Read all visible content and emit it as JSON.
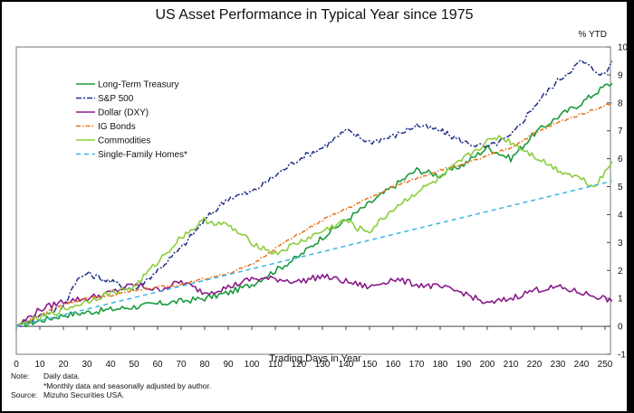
{
  "chart_data": {
    "type": "line",
    "title": "US Asset Performance in Typical Year since 1975",
    "xlabel": "Trading Days in Year",
    "ylabel": "% YTD",
    "xlim": [
      0,
      255
    ],
    "ylim": [
      -1,
      10
    ],
    "xticks": [
      0,
      10,
      20,
      30,
      40,
      50,
      60,
      70,
      80,
      90,
      100,
      110,
      120,
      130,
      140,
      150,
      160,
      170,
      180,
      190,
      200,
      210,
      220,
      230,
      240,
      250
    ],
    "yticks": [
      -1,
      0,
      1,
      2,
      3,
      4,
      5,
      6,
      7,
      8,
      9,
      10
    ],
    "y_axis_side": "right",
    "grid": false,
    "legend_position": "top-left",
    "series": [
      {
        "name": "Long-Term Treasury",
        "color": "#1a9a3c",
        "style": "solid",
        "x": [
          0,
          10,
          20,
          30,
          40,
          50,
          60,
          70,
          80,
          90,
          100,
          110,
          120,
          130,
          140,
          150,
          160,
          170,
          180,
          190,
          200,
          210,
          220,
          230,
          240,
          250,
          253
        ],
        "y": [
          0,
          0.2,
          0.4,
          0.5,
          0.6,
          0.7,
          0.8,
          0.9,
          1.0,
          1.2,
          1.5,
          2.0,
          2.5,
          3.2,
          3.8,
          4.4,
          5.0,
          5.6,
          5.4,
          5.8,
          6.4,
          6.0,
          6.9,
          7.5,
          8.0,
          8.6,
          8.7
        ]
      },
      {
        "name": "S&P 500",
        "color": "#1f2f8a",
        "style": "dashdot",
        "x": [
          0,
          10,
          20,
          25,
          30,
          40,
          50,
          60,
          70,
          80,
          90,
          100,
          110,
          120,
          130,
          140,
          150,
          160,
          170,
          180,
          190,
          200,
          210,
          220,
          230,
          240,
          245,
          250,
          253
        ],
        "y": [
          0,
          0.4,
          0.7,
          1.6,
          1.9,
          1.6,
          1.3,
          2.0,
          2.8,
          3.8,
          4.6,
          4.8,
          5.4,
          6.0,
          6.4,
          7.0,
          6.6,
          6.8,
          7.2,
          7.0,
          6.6,
          6.4,
          6.8,
          7.9,
          8.8,
          9.5,
          9.2,
          9.0,
          9.5
        ]
      },
      {
        "name": "Dollar (DXY)",
        "color": "#8a1a8a",
        "style": "solid",
        "x": [
          0,
          10,
          20,
          30,
          40,
          50,
          60,
          70,
          80,
          90,
          100,
          110,
          120,
          130,
          140,
          150,
          160,
          170,
          180,
          190,
          200,
          210,
          220,
          230,
          240,
          250,
          253
        ],
        "y": [
          0,
          0.6,
          0.9,
          1.0,
          1.2,
          1.5,
          1.3,
          1.6,
          1.2,
          1.4,
          1.7,
          1.7,
          1.6,
          1.8,
          1.6,
          1.4,
          1.7,
          1.5,
          1.4,
          1.2,
          0.8,
          1.0,
          1.3,
          1.4,
          1.2,
          1.0,
          0.9
        ]
      },
      {
        "name": "IG Bonds",
        "color": "#e8731a",
        "style": "dashed-dot",
        "x": [
          0,
          10,
          20,
          30,
          40,
          50,
          60,
          70,
          80,
          90,
          100,
          110,
          120,
          130,
          140,
          150,
          160,
          170,
          180,
          190,
          200,
          210,
          220,
          230,
          240,
          250,
          253
        ],
        "y": [
          0,
          0.4,
          0.8,
          1.0,
          1.1,
          1.3,
          1.4,
          1.5,
          1.7,
          1.9,
          2.2,
          2.8,
          3.3,
          3.8,
          4.2,
          4.6,
          5.0,
          5.3,
          5.6,
          5.8,
          6.1,
          6.4,
          6.9,
          7.3,
          7.6,
          7.9,
          8.0
        ]
      },
      {
        "name": "Commodities",
        "color": "#8ccd3c",
        "style": "solid",
        "x": [
          0,
          10,
          20,
          30,
          40,
          50,
          60,
          70,
          75,
          80,
          90,
          100,
          110,
          120,
          130,
          140,
          145,
          150,
          160,
          170,
          180,
          190,
          200,
          205,
          210,
          220,
          230,
          240,
          245,
          250,
          253
        ],
        "y": [
          0,
          0.3,
          0.6,
          0.9,
          1.2,
          1.4,
          2.3,
          3.2,
          3.5,
          3.8,
          3.6,
          3.0,
          2.6,
          3.0,
          3.4,
          3.8,
          3.5,
          3.4,
          4.2,
          4.8,
          5.3,
          6.0,
          6.6,
          6.8,
          6.6,
          6.1,
          5.6,
          5.3,
          5.0,
          5.5,
          5.9
        ]
      },
      {
        "name": "Single-Family Homes*",
        "color": "#3ab4e6",
        "style": "dashed",
        "x": [
          0,
          253
        ],
        "y": [
          0,
          5.2
        ]
      }
    ]
  },
  "notes": {
    "note_label": "Note:",
    "note_line1": "Daily data.",
    "note_line2": "*Monthly data and seasonally adjusted by author.",
    "source_label": "Source:",
    "source_text": "Mizuho Securities USA."
  }
}
